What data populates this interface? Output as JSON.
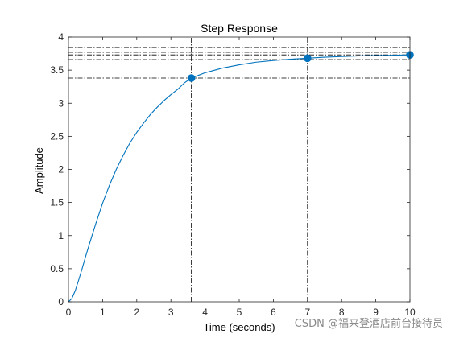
{
  "chart_data": {
    "type": "line",
    "title": "Step Response",
    "xlabel": "Time (seconds)",
    "ylabel": "Amplitude",
    "xlim": [
      0,
      10
    ],
    "ylim": [
      0,
      4
    ],
    "x_ticks": [
      "0",
      "1",
      "2",
      "3",
      "4",
      "5",
      "6",
      "7",
      "8",
      "9",
      "10"
    ],
    "y_ticks": [
      "0",
      "0.5",
      "1",
      "1.5",
      "2",
      "2.5",
      "3",
      "3.5",
      "4"
    ],
    "grid": false,
    "series": [
      {
        "color": "#0072BD",
        "x": [
          0,
          0.1,
          0.2,
          0.3,
          0.4,
          0.5,
          0.6,
          0.8,
          1.0,
          1.2,
          1.4,
          1.6,
          1.8,
          2.0,
          2.2,
          2.4,
          2.6,
          2.8,
          3.0,
          3.2,
          3.4,
          3.6,
          3.8,
          4.0,
          4.5,
          5.0,
          5.5,
          6.0,
          6.5,
          7.0,
          7.5,
          8.0,
          8.5,
          9.0,
          9.5,
          10.0
        ],
        "y": [
          0,
          0.05,
          0.17,
          0.33,
          0.5,
          0.68,
          0.85,
          1.18,
          1.49,
          1.76,
          2.0,
          2.21,
          2.4,
          2.56,
          2.7,
          2.83,
          2.94,
          3.04,
          3.13,
          3.21,
          3.31,
          3.38,
          3.42,
          3.46,
          3.53,
          3.58,
          3.62,
          3.645,
          3.665,
          3.68,
          3.695,
          3.705,
          3.715,
          3.72,
          3.725,
          3.73
        ]
      }
    ],
    "markers": [
      {
        "x": 3.6,
        "y": 3.38
      },
      {
        "x": 7.0,
        "y": 3.68
      },
      {
        "x": 10.0,
        "y": 3.73
      }
    ],
    "reference_lines": {
      "horizontal": [
        3.38,
        3.66,
        3.73,
        3.77,
        3.84
      ],
      "vertical": [
        0.25,
        3.6,
        7.0
      ]
    }
  },
  "watermark": "CSDN @福来登酒店前台接待员"
}
